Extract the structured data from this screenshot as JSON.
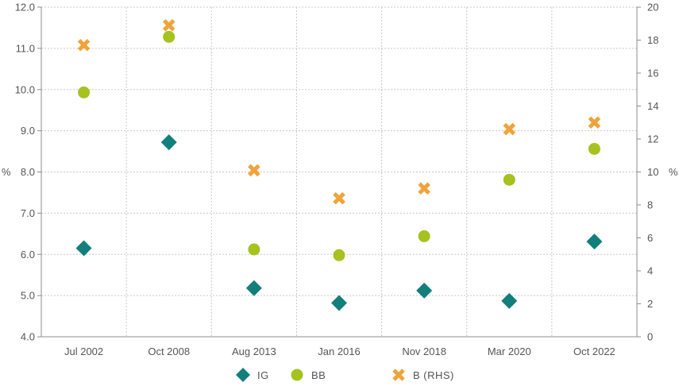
{
  "chart_data": {
    "type": "scatter",
    "categories": [
      "Jul 2002",
      "Oct 2008",
      "Aug 2013",
      "Jan 2016",
      "Nov 2018",
      "Mar 2020",
      "Oct 2022"
    ],
    "y_left": {
      "label": "%",
      "range": [
        4.0,
        12.0
      ],
      "ticks": [
        "4.0",
        "5.0",
        "6.0",
        "7.0",
        "8.0",
        "9.0",
        "10.0",
        "11.0",
        "12.0"
      ]
    },
    "y_right": {
      "label": "%",
      "range": [
        0,
        20
      ],
      "ticks": [
        "0",
        "2",
        "4",
        "6",
        "8",
        "10",
        "12",
        "14",
        "16",
        "18",
        "20"
      ]
    },
    "grid": true,
    "legend_position": "bottom",
    "series": [
      {
        "name": "IG",
        "axis": "left",
        "marker": "diamond",
        "color": "#127f7c",
        "values": [
          6.15,
          8.72,
          5.18,
          4.82,
          5.12,
          4.87,
          6.31
        ]
      },
      {
        "name": "BB",
        "axis": "left",
        "marker": "circle",
        "color": "#a5c21f",
        "values": [
          9.93,
          11.28,
          6.12,
          5.98,
          6.44,
          7.81,
          8.56
        ]
      },
      {
        "name": "B (RHS)",
        "axis": "right",
        "marker": "cross",
        "color": "#f0a33a",
        "values": [
          17.7,
          18.9,
          10.1,
          8.4,
          9.0,
          12.6,
          13.0
        ]
      }
    ]
  }
}
